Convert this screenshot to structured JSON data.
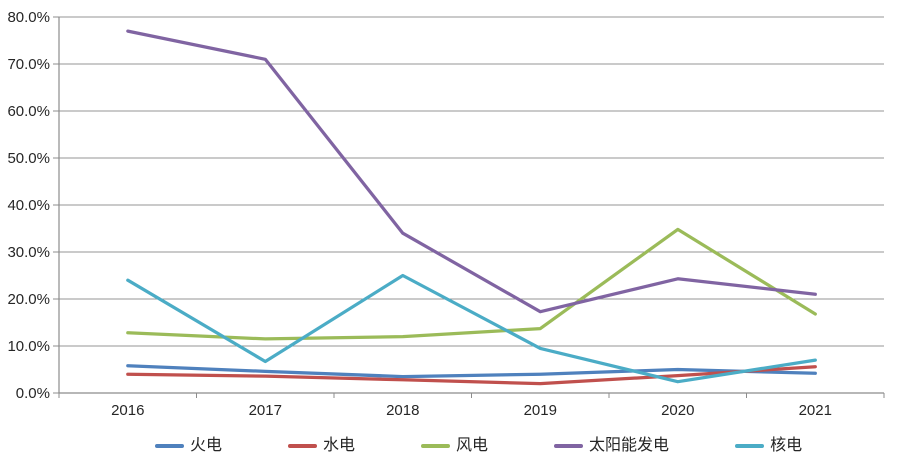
{
  "chart_data": {
    "type": "line",
    "title": "",
    "xlabel": "",
    "ylabel": "",
    "categories": [
      "2016",
      "2017",
      "2018",
      "2019",
      "2020",
      "2021"
    ],
    "series": [
      {
        "name": "火电",
        "color": "#4F81BD",
        "values": [
          5.8,
          4.6,
          3.5,
          4.0,
          5.0,
          4.2
        ]
      },
      {
        "name": "水电",
        "color": "#C0504D",
        "values": [
          4.0,
          3.6,
          2.8,
          2.0,
          3.7,
          5.6
        ]
      },
      {
        "name": "风电",
        "color": "#9BBB59",
        "values": [
          12.8,
          11.5,
          12.0,
          13.7,
          34.8,
          16.8
        ]
      },
      {
        "name": "太阳能发电",
        "color": "#8064A2",
        "values": [
          77.0,
          71.0,
          34.0,
          17.3,
          24.3,
          21.0
        ]
      },
      {
        "name": "核电",
        "color": "#4BACC6",
        "values": [
          24.0,
          6.7,
          25.0,
          9.5,
          2.4,
          7.0
        ]
      }
    ],
    "ylim": [
      0,
      80
    ],
    "y_tick_labels": [
      "0.0%",
      "10.0%",
      "20.0%",
      "30.0%",
      "40.0%",
      "50.0%",
      "60.0%",
      "70.0%",
      "80.0%"
    ],
    "grid": true,
    "legend_position": "bottom"
  },
  "style": {
    "gridline_color": "#969696",
    "axis_color": "#8C8C8C",
    "tick_text_color": "#262626",
    "background": "#FFFFFF"
  }
}
